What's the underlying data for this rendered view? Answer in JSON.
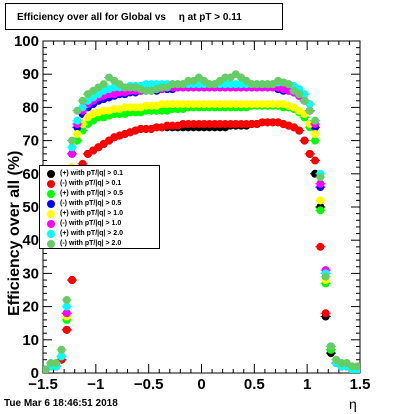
{
  "title": {
    "part_a": "Efficiency over all for Global vs",
    "part_b": "η at pT > 0.11"
  },
  "timestamp": "Tue Mar  6 18:46:51 2018",
  "chart_data": {
    "type": "scatter",
    "title": "Efficiency over all for Global vs η at pT > 0.11",
    "xlabel": "η",
    "ylabel": "Efficiency over all (%)",
    "xlim": [
      -1.5,
      1.5
    ],
    "ylim": [
      0,
      100
    ],
    "x_ticks": [
      "-1.5",
      "-1",
      "-0.5",
      "0",
      "0.5",
      "1",
      "1.5"
    ],
    "y_ticks": [
      "0",
      "10",
      "20",
      "30",
      "40",
      "50",
      "60",
      "70",
      "80",
      "90",
      "100"
    ],
    "grid": false,
    "legend_position": "left-middle",
    "x": [
      -1.475,
      -1.425,
      -1.375,
      -1.325,
      -1.275,
      -1.225,
      -1.175,
      -1.125,
      -1.075,
      -1.025,
      -0.975,
      -0.925,
      -0.875,
      -0.825,
      -0.775,
      -0.725,
      -0.675,
      -0.625,
      -0.575,
      -0.525,
      -0.475,
      -0.425,
      -0.375,
      -0.325,
      -0.275,
      -0.225,
      -0.175,
      -0.125,
      -0.075,
      -0.025,
      0.025,
      0.075,
      0.125,
      0.175,
      0.225,
      0.275,
      0.325,
      0.375,
      0.425,
      0.475,
      0.525,
      0.575,
      0.625,
      0.675,
      0.725,
      0.775,
      0.825,
      0.875,
      0.925,
      0.975,
      1.025,
      1.075,
      1.125,
      1.175,
      1.225,
      1.275,
      1.325,
      1.375,
      1.425,
      1.475
    ],
    "series": [
      {
        "name": "(+) with pT/|q| > 0.1",
        "color": "#000000",
        "values": [
          1,
          2,
          2,
          4,
          13,
          28,
          50,
          62,
          66,
          67,
          68,
          69,
          70,
          71,
          71.5,
          72,
          72.5,
          73,
          73.5,
          73.5,
          73.5,
          74,
          74,
          74,
          74,
          74,
          74,
          74,
          74,
          74,
          74,
          74,
          74,
          74,
          74,
          74.5,
          74.5,
          74.5,
          74.5,
          75,
          75,
          75.5,
          75.5,
          75.5,
          75.5,
          75,
          74.5,
          74,
          73,
          70,
          66,
          60,
          50,
          17,
          6,
          3,
          2,
          2,
          1,
          1
        ]
      },
      {
        "name": "(-) with pT/|q| > 0.1",
        "color": "#ff0000",
        "values": [
          1,
          2,
          2,
          4,
          13,
          28,
          50,
          63,
          66,
          67,
          68,
          69,
          70,
          71,
          71.5,
          72,
          72.5,
          73,
          73.5,
          73.5,
          73.5,
          74,
          74,
          74.5,
          74.5,
          74.5,
          75,
          75,
          75,
          75,
          75,
          75,
          75,
          75,
          75,
          75,
          75,
          75,
          75,
          75,
          75,
          75.5,
          75.5,
          75.5,
          75.5,
          75,
          74.5,
          74,
          73,
          70,
          66,
          64,
          38,
          18,
          7,
          3,
          2,
          2,
          1,
          1
        ]
      },
      {
        "name": "(+) with pT/|q| > 0.5",
        "color": "#00ff00",
        "values": [
          1,
          2,
          2,
          5,
          16,
          62,
          70,
          73,
          75,
          76,
          77,
          77,
          77.5,
          78,
          78,
          78,
          78.5,
          78.5,
          78.5,
          79,
          79,
          79,
          79,
          79,
          79.5,
          79.5,
          79.5,
          80,
          80,
          80,
          80,
          80,
          80,
          80,
          80,
          80,
          80,
          80,
          80,
          80.5,
          80.5,
          80.5,
          80.5,
          80.5,
          80.5,
          80,
          80,
          79.5,
          78.5,
          77,
          74,
          70,
          49,
          27,
          7,
          3,
          2,
          2,
          1,
          1
        ]
      },
      {
        "name": "(-) with pT/|q| > 0.5",
        "color": "#0000ff",
        "values": [
          1,
          2,
          2,
          5,
          18,
          66,
          74,
          78,
          80,
          81,
          82,
          82.5,
          83,
          83.5,
          84,
          84,
          84.5,
          84.5,
          85,
          85,
          85,
          85,
          85.5,
          85.5,
          85.5,
          86,
          86,
          86,
          86,
          86,
          86,
          86,
          86,
          86,
          86,
          86,
          86,
          86,
          86,
          86,
          86,
          86,
          86,
          86,
          85.5,
          85,
          85,
          84.5,
          83.5,
          82,
          79,
          74,
          56,
          30,
          8,
          3,
          2,
          2,
          1,
          1
        ]
      },
      {
        "name": "(+) with pT/|q| > 1.0",
        "color": "#ffff00",
        "values": [
          1,
          2,
          2,
          5,
          17,
          62,
          72,
          75,
          77,
          78,
          78.5,
          79,
          79,
          79.5,
          79.5,
          80,
          80,
          80,
          80,
          80.5,
          80.5,
          80.5,
          81,
          81,
          81,
          81,
          81,
          81,
          81,
          81,
          81,
          81,
          81,
          81,
          81,
          81,
          81,
          81,
          81,
          81,
          81,
          81,
          81,
          81,
          81,
          81,
          80.5,
          80,
          79,
          78,
          75,
          72,
          52,
          28,
          8,
          3,
          2,
          2,
          1,
          1
        ]
      },
      {
        "name": "(-) with pT/|q| > 1.0",
        "color": "#ff00ff",
        "values": [
          1,
          2,
          2,
          5,
          18,
          66,
          75,
          79,
          81,
          82,
          83,
          83.5,
          84,
          84,
          84.5,
          84.5,
          85,
          85,
          85,
          85.5,
          85.5,
          85.5,
          85.5,
          86,
          86,
          86,
          86,
          86,
          86,
          86,
          86,
          86,
          86,
          86,
          86,
          86,
          86,
          86,
          86,
          86,
          86,
          86,
          86,
          86,
          86,
          85.5,
          85,
          84.5,
          83.5,
          82,
          79,
          75,
          57,
          31,
          8,
          3,
          2,
          2,
          1,
          1
        ]
      },
      {
        "name": "(+) with pT/|q| > 2.0",
        "color": "#00ffff",
        "values": [
          1,
          2,
          2,
          5,
          20,
          68,
          76,
          80,
          82,
          83,
          84,
          85,
          85.5,
          86,
          86,
          86,
          86.5,
          86.5,
          86.5,
          87,
          87,
          87,
          87,
          87,
          87,
          87,
          87,
          87,
          87,
          87,
          87,
          87,
          87,
          87,
          87,
          87,
          87,
          87,
          87,
          87,
          87,
          87,
          87,
          87,
          87.5,
          87.5,
          87,
          86.5,
          85.5,
          84,
          81,
          76,
          60,
          30,
          8,
          3,
          2,
          2,
          1,
          1
        ]
      },
      {
        "name": "(-) with pT/|q| > 2.0",
        "color": "#66cc66",
        "values": [
          1,
          3,
          3,
          7,
          22,
          70,
          79,
          82,
          84,
          85,
          86,
          87,
          89,
          88,
          87,
          86,
          86,
          86,
          85.5,
          85,
          85,
          85.5,
          86,
          86,
          87,
          87,
          87,
          88,
          88,
          89,
          88,
          87,
          87,
          88,
          89,
          89,
          90,
          89,
          88,
          87,
          87,
          87,
          87,
          87,
          88,
          87.5,
          87,
          85,
          84,
          82,
          79,
          76,
          59,
          29,
          8,
          4,
          3,
          3,
          2,
          2
        ]
      }
    ]
  }
}
